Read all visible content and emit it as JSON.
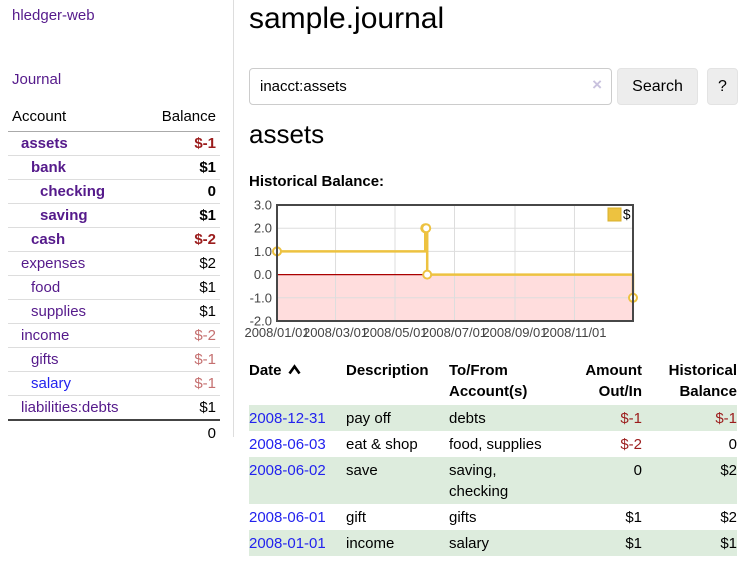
{
  "app_title": "hledger-web",
  "colors": {
    "link_purple": "#551a8b",
    "link_blue": "#2222ee",
    "negative_strong": "#9b1c1c",
    "negative_soft": "#c57070",
    "row_stripe_green": "#ddecdd",
    "chart_line": "#edc240"
  },
  "sidebar": {
    "journal_link": "Journal",
    "accounts_table": {
      "header": {
        "account": "Account",
        "balance": "Balance"
      },
      "rows": [
        {
          "name": "assets",
          "balance": "$-1",
          "indent": 1,
          "bold": true,
          "balance_color": "negative-strong"
        },
        {
          "name": "bank",
          "balance": "$1",
          "indent": 2,
          "bold": true,
          "balance_color": "normal"
        },
        {
          "name": "checking",
          "balance": "0",
          "indent": 3,
          "bold": true,
          "balance_color": "normal"
        },
        {
          "name": "saving",
          "balance": "$1",
          "indent": 3,
          "bold": true,
          "balance_color": "normal"
        },
        {
          "name": "cash",
          "balance": "$-2",
          "indent": 2,
          "bold": true,
          "balance_color": "negative-strong"
        },
        {
          "name": "expenses",
          "balance": "$2",
          "indent": 1,
          "bold": false,
          "balance_color": "normal"
        },
        {
          "name": "food",
          "balance": "$1",
          "indent": 2,
          "bold": false,
          "balance_color": "normal"
        },
        {
          "name": "supplies",
          "balance": "$1",
          "indent": 2,
          "bold": false,
          "balance_color": "normal"
        },
        {
          "name": "income",
          "balance": "$-2",
          "indent": 1,
          "bold": false,
          "balance_color": "negative-soft"
        },
        {
          "name": "gifts",
          "balance": "$-1",
          "indent": 2,
          "bold": false,
          "balance_color": "negative-soft"
        },
        {
          "name": "salary",
          "balance": "$-1",
          "indent": 2,
          "bold": false,
          "balance_color": "negative-soft",
          "link_style": "unvisited"
        },
        {
          "name": "liabilities:debts",
          "balance": "$1",
          "indent": 1,
          "bold": false,
          "balance_color": "normal"
        }
      ],
      "total": "0"
    }
  },
  "main": {
    "title": "sample.journal",
    "search": {
      "value": "inacct:assets",
      "clear_icon": "×",
      "search_button": "Search",
      "help_button": "?"
    },
    "account_heading": "assets",
    "chart_heading": "Historical Balance:"
  },
  "register": {
    "headers": {
      "date": "Date",
      "description": "Description",
      "tofrom": "To/From Account(s)",
      "amount": "Amount Out/In",
      "balance": "Historical Balance"
    },
    "rows": [
      {
        "date": "2008-12-31",
        "description": "pay off",
        "accounts": "debts",
        "amount": "$-1",
        "amount_neg": true,
        "balance": "$-1",
        "balance_neg": true
      },
      {
        "date": "2008-06-03",
        "description": "eat & shop",
        "accounts": "food, supplies",
        "amount": "$-2",
        "amount_neg": true,
        "balance": "0",
        "balance_neg": false
      },
      {
        "date": "2008-06-02",
        "description": "save",
        "accounts": "saving, checking",
        "amount": "0",
        "amount_neg": false,
        "balance": "$2",
        "balance_neg": false
      },
      {
        "date": "2008-06-01",
        "description": "gift",
        "accounts": "gifts",
        "amount": "$1",
        "amount_neg": false,
        "balance": "$2",
        "balance_neg": false
      },
      {
        "date": "2008-01-01",
        "description": "income",
        "accounts": "salary",
        "amount": "$1",
        "amount_neg": false,
        "balance": "$1",
        "balance_neg": false
      }
    ]
  },
  "chart_data": {
    "type": "line",
    "title": "Historical Balance:",
    "legend": [
      {
        "label": "$",
        "color": "#edc240"
      }
    ],
    "series": [
      {
        "name": "$",
        "step": true,
        "points": [
          {
            "date": "2008-01-01",
            "day": 0,
            "value": 1
          },
          {
            "date": "2008-06-01",
            "day": 152,
            "value": 2
          },
          {
            "date": "2008-06-02",
            "day": 153,
            "value": 2
          },
          {
            "date": "2008-06-03",
            "day": 154,
            "value": 0
          },
          {
            "date": "2008-12-31",
            "day": 365,
            "value": -1
          }
        ]
      }
    ],
    "x_ticks": [
      {
        "label": "2008/01/01",
        "day": 0
      },
      {
        "label": "2008/03/01",
        "day": 60
      },
      {
        "label": "2008/05/01",
        "day": 121
      },
      {
        "label": "2008/07/01",
        "day": 182
      },
      {
        "label": "2008/09/01",
        "day": 244
      },
      {
        "label": "2008/11/01",
        "day": 305
      }
    ],
    "y_ticks": [
      "3.0",
      "2.0",
      "1.0",
      "0.0",
      "-1.0",
      "-2.0"
    ],
    "xlim_days": [
      0,
      365
    ],
    "ylim": [
      -2,
      3
    ],
    "grid": true,
    "legend_position": "top-right",
    "colors": {
      "line": "#edc240",
      "marker_fill": "#ffffff",
      "negative_region": "#ffdddd",
      "zero_line": "#aa0000",
      "grid": "#dddddd",
      "border": "#474747",
      "tick_label": "#444444"
    }
  }
}
